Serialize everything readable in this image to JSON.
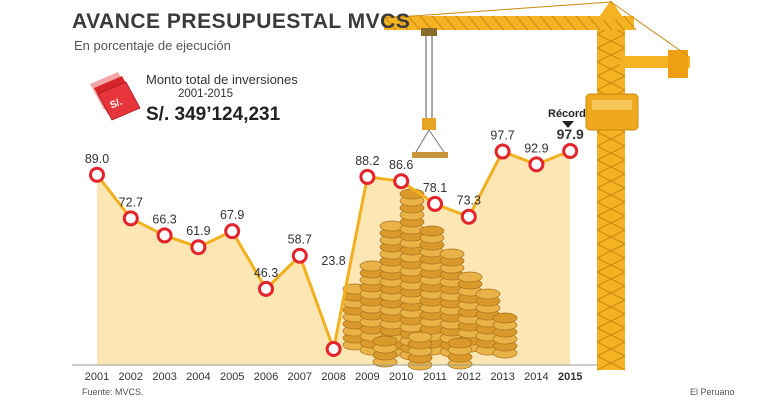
{
  "header": {
    "title": "AVANCE PRESUPUESTAL MVCS",
    "subtitle": "En porcentaje de ejecución"
  },
  "investment_box": {
    "label": "Monto total de inversiones",
    "period": "2001-2015",
    "amount": "S/. 349’124,231",
    "icon": "money-bag-icon",
    "icon_text": "S/."
  },
  "record": {
    "label": "Récord",
    "year": "2015"
  },
  "footer": {
    "source": "Fuente: MVCS.",
    "credit": "El Peruano"
  },
  "colors": {
    "line": "#f2b01e",
    "area": "#fbe6b4",
    "marker_ring": "#e3242b",
    "crane": "#f5b324",
    "coin": "#d99a2b",
    "icon_red": "#d8232a"
  },
  "chart_data": {
    "type": "line",
    "title": "AVANCE PRESUPUESTAL MVCS",
    "subtitle": "En porcentaje de ejecución",
    "x": [
      "2001",
      "2002",
      "2003",
      "2004",
      "2005",
      "2006",
      "2007",
      "2008",
      "2009",
      "2010",
      "2011",
      "2012",
      "2013",
      "2014",
      "2015"
    ],
    "values": [
      89.0,
      72.7,
      66.3,
      61.9,
      67.9,
      46.3,
      58.7,
      23.8,
      88.2,
      86.6,
      78.1,
      73.3,
      97.7,
      92.9,
      97.9
    ],
    "labels": [
      "89.0",
      "72.7",
      "66.3",
      "61.9",
      "67.9",
      "46.3",
      "58.7",
      "23.8",
      "88.2",
      "86.6",
      "78.1",
      "73.3",
      "97.7",
      "92.9",
      "97.9"
    ],
    "xlabel": "",
    "ylabel": "",
    "ylim": [
      23.8,
      97.9
    ],
    "grid": false,
    "legend": "none",
    "highlight_index": 14
  }
}
